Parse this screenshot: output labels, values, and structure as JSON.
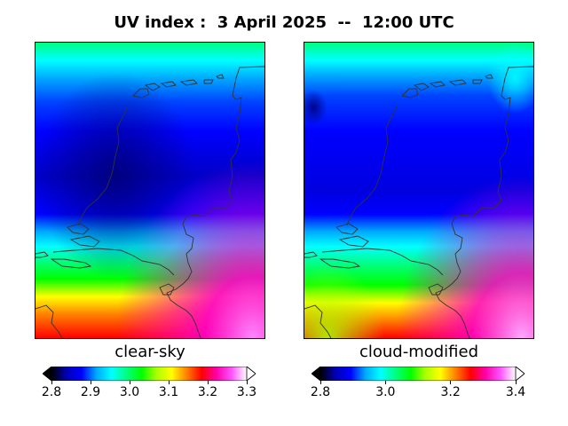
{
  "figure": {
    "title": "UV index :  3 April 2025  --  12:00 UTC"
  },
  "panels": [
    {
      "id": "clear-sky",
      "label": "clear-sky",
      "colorbar": {
        "min": 2.8,
        "max": 3.3,
        "ticks": [
          "2.8",
          "2.9",
          "3.0",
          "3.1",
          "3.2",
          "3.3"
        ],
        "extend": "both"
      }
    },
    {
      "id": "cloud-modified",
      "label": "cloud-modified",
      "colorbar": {
        "min": 2.8,
        "max": 3.4,
        "ticks": [
          "2.8",
          "3.0",
          "3.2",
          "3.4"
        ],
        "extend": "both"
      }
    }
  ],
  "colormap": {
    "name": "gist_ncar-like",
    "stops": [
      "#000000",
      "#0000b4",
      "#0000ff",
      "#00aaff",
      "#00ffff",
      "#00ff80",
      "#00ff00",
      "#aaff00",
      "#ffff00",
      "#ff8000",
      "#ff0000",
      "#ff00aa",
      "#ff55ff",
      "#ffffff"
    ]
  },
  "map_features": {
    "coastline_color": "#333333",
    "country": "Netherlands"
  }
}
